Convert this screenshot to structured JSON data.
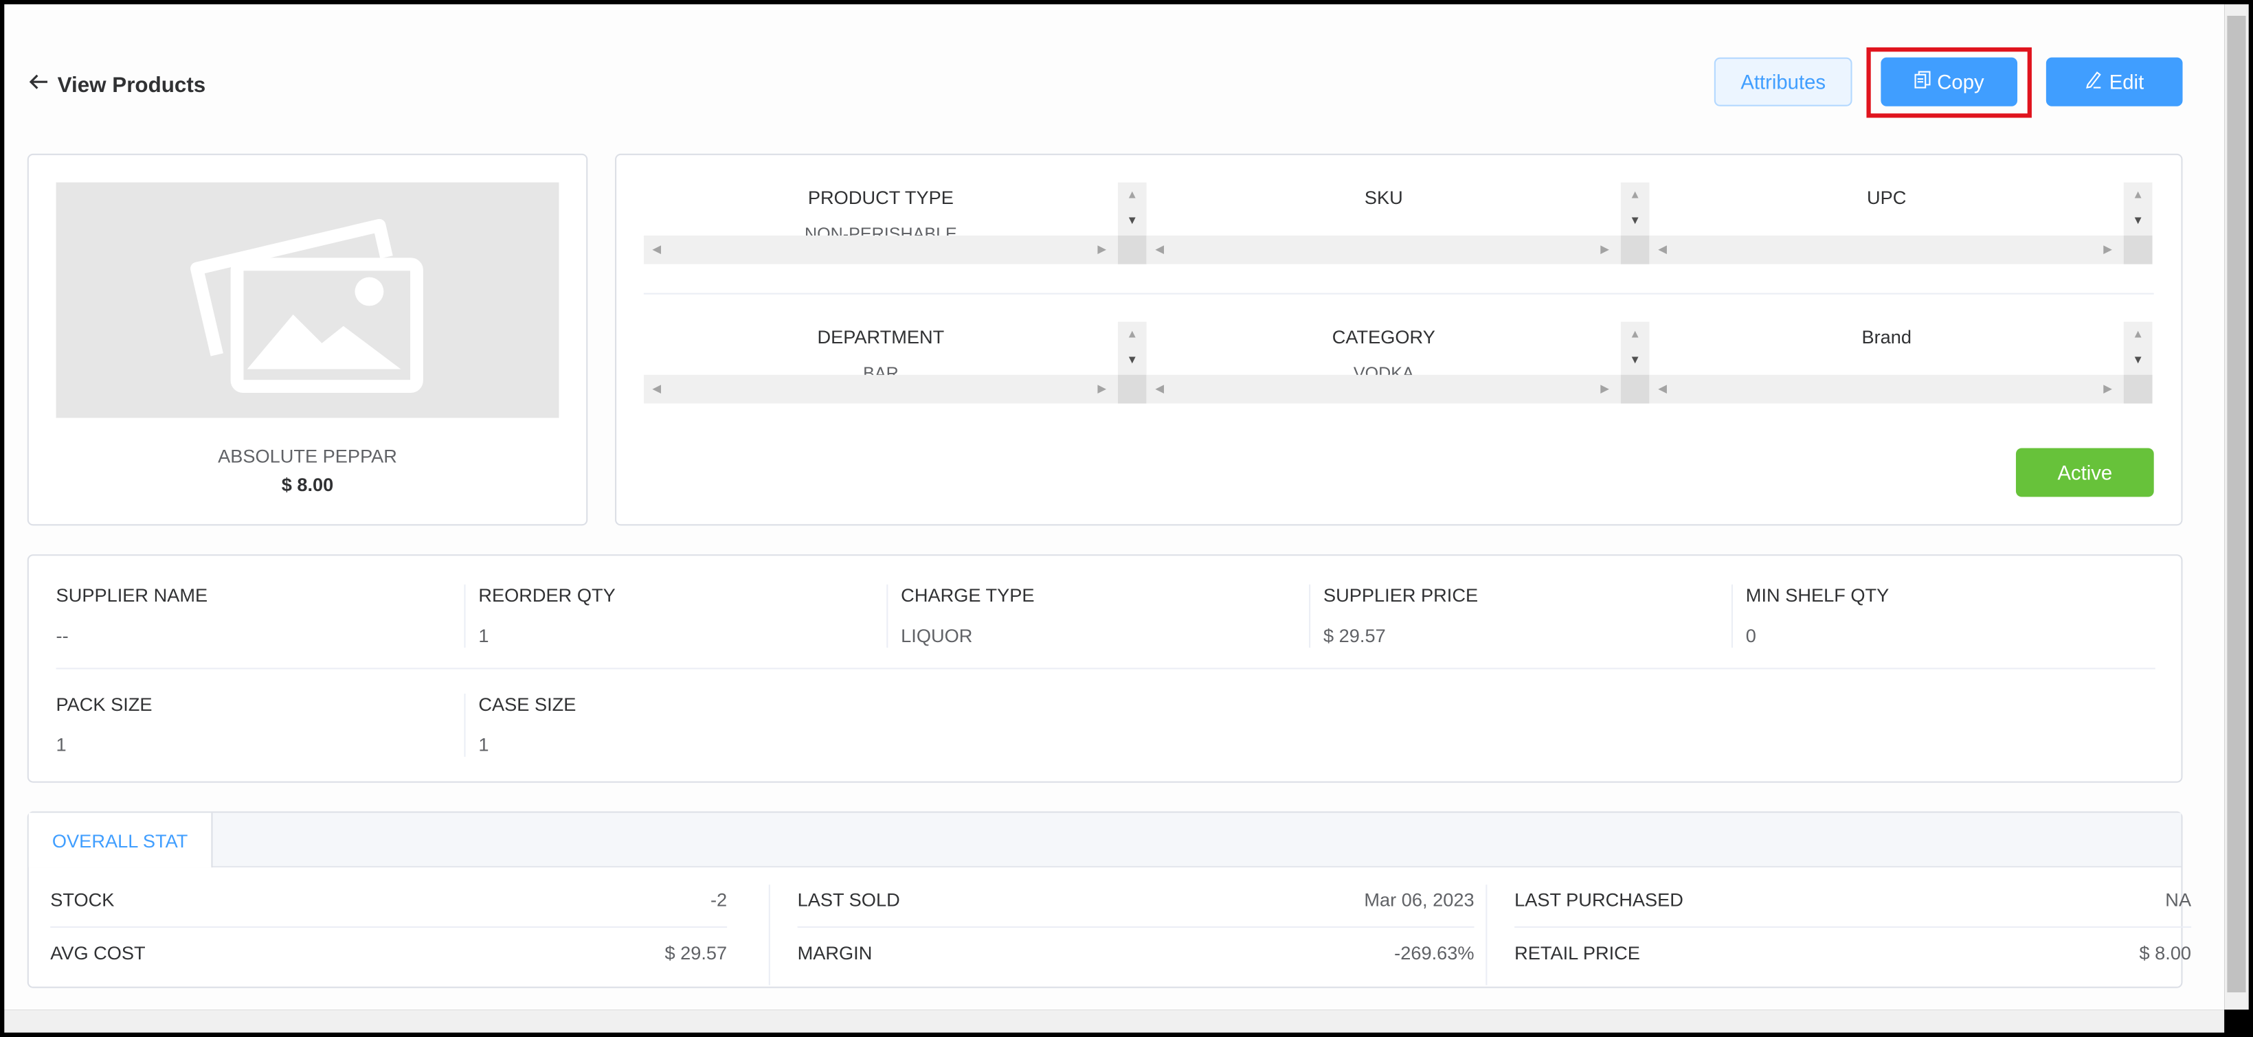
{
  "header": {
    "back_icon": "arrow-left-icon",
    "title": "View Products"
  },
  "toolbar": {
    "attributes_label": "Attributes",
    "copy_label": "Copy",
    "copy_icon": "copy-icon",
    "edit_label": "Edit",
    "edit_icon": "edit-pencil-icon"
  },
  "product": {
    "image_icon": "image-placeholder-icon",
    "name": "ABSOLUTE PEPPAR",
    "price": "$ 8.00"
  },
  "details": {
    "fields": [
      {
        "label": "PRODUCT TYPE",
        "value": "NON-PERISHABLE"
      },
      {
        "label": "SKU",
        "value": ""
      },
      {
        "label": "UPC",
        "value": ""
      },
      {
        "label": "DEPARTMENT",
        "value": "BAR"
      },
      {
        "label": "CATEGORY",
        "value": "VODKA"
      },
      {
        "label": "Brand",
        "value": ""
      }
    ],
    "status_label": "Active"
  },
  "supplier": {
    "fields": [
      {
        "label": "SUPPLIER NAME",
        "value": "--"
      },
      {
        "label": "REORDER QTY",
        "value": "1"
      },
      {
        "label": "CHARGE TYPE",
        "value": "LIQUOR"
      },
      {
        "label": "SUPPLIER PRICE",
        "value": "$ 29.57"
      },
      {
        "label": "MIN SHELF QTY",
        "value": "0"
      },
      {
        "label": "PACK SIZE",
        "value": "1"
      },
      {
        "label": "CASE SIZE",
        "value": "1"
      }
    ]
  },
  "stats": {
    "tab_label": "OVERALL STAT",
    "items": [
      {
        "label": "STOCK",
        "value": "-2"
      },
      {
        "label": "LAST SOLD",
        "value": "Mar 06, 2023"
      },
      {
        "label": "LAST PURCHASED",
        "value": "NA"
      },
      {
        "label": "AVG COST",
        "value": "$ 29.57"
      },
      {
        "label": "MARGIN",
        "value": "-269.63%"
      },
      {
        "label": "RETAIL PRICE",
        "value": "$ 8.00"
      }
    ]
  },
  "colors": {
    "primary": "#409eff",
    "success": "#67c23a",
    "highlight": "#e0141e"
  }
}
